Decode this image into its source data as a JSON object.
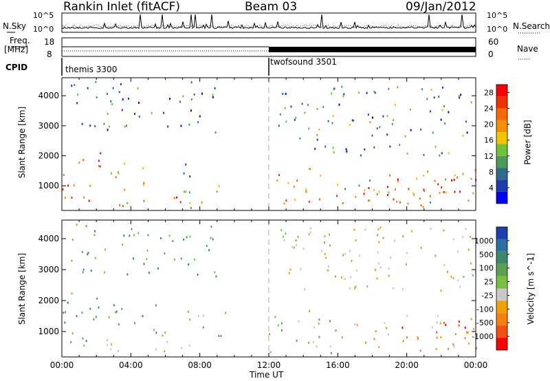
{
  "header": {
    "station": "Rankin Inlet (fitACF)",
    "beam": "Beam 03",
    "date": "09/Jan/2012"
  },
  "top_panel": {
    "left_label": "N.Sky",
    "right_label": "N.Search",
    "left_ticks": [
      "10^5",
      "10^0"
    ],
    "right_ticks": [
      "10^5",
      "10^0"
    ]
  },
  "freq_panel": {
    "left_label_1": "Freq.",
    "left_label_2": "[MHz]",
    "right_label": "Nave",
    "left_ticks": [
      "18",
      "8"
    ],
    "right_ticks": [
      "60",
      "0"
    ]
  },
  "cpid_panel": {
    "label": "CPID",
    "modes": [
      {
        "name": "themis 3300",
        "start_hour": 0
      },
      {
        "name": "twofsound 3501",
        "start_hour": 12
      }
    ]
  },
  "colors": {
    "power_scale": [
      "#0000ff",
      "#1e3ca8",
      "#2e6b8e",
      "#4a9a5a",
      "#70c23a",
      "#f5c400",
      "#f59000",
      "#f56a00",
      "#f03000",
      "#ff0000"
    ],
    "velocity_scale": [
      "#1c3fb0",
      "#2a6fa0",
      "#3a8a6a",
      "#5aa050",
      "#7ac040",
      "#c8c8c8",
      "#f0a000",
      "#f58010",
      "#f05010",
      "#ff0000"
    ]
  },
  "chart_data": [
    {
      "type": "heatmap",
      "title": "",
      "xlabel": "",
      "ylabel": "Slant Range [km]",
      "xlim": [
        "00:00",
        "24:00"
      ],
      "ylim": [
        180,
        4600
      ],
      "y_ticks": [
        "1000",
        "2000",
        "3000",
        "4000"
      ],
      "colorbar": {
        "label": "Power [dB]",
        "ticks": [
          "4",
          "8",
          "12",
          "16",
          "20",
          "24",
          "28"
        ],
        "range": [
          0,
          30
        ]
      },
      "scatter_regions": [
        {
          "t0": 0.0,
          "t1": 2.3,
          "r0": 500,
          "r1": 2200,
          "level": 26
        },
        {
          "t0": 1.2,
          "t1": 5.0,
          "r0": 900,
          "r1": 1800,
          "level": 20
        },
        {
          "t0": 4.0,
          "t1": 8.0,
          "r0": 400,
          "r1": 700,
          "level": 22
        },
        {
          "t0": 2.0,
          "t1": 9.0,
          "r0": 250,
          "r1": 500,
          "level": 18
        },
        {
          "t0": 7.0,
          "t1": 9.5,
          "r0": 800,
          "r1": 1800,
          "level": 10
        },
        {
          "t0": 12.0,
          "t1": 24.0,
          "r0": 300,
          "r1": 1600,
          "level": 18
        },
        {
          "t0": 17.0,
          "t1": 24.0,
          "r0": 500,
          "r1": 1400,
          "level": 26
        },
        {
          "t0": 0.5,
          "t1": 9.0,
          "r0": 2800,
          "r1": 4500,
          "level": 8
        },
        {
          "t0": 12.5,
          "t1": 24.0,
          "r0": 2000,
          "r1": 4400,
          "level": 9
        }
      ]
    },
    {
      "type": "heatmap",
      "title": "",
      "xlabel": "Time UT",
      "ylabel": "Slant Range [km]",
      "xlim": [
        "00:00",
        "24:00"
      ],
      "ylim": [
        180,
        4600
      ],
      "y_ticks": [
        "1000",
        "2000",
        "3000",
        "4000"
      ],
      "x_ticks": [
        "00:00",
        "04:00",
        "08:00",
        "12:00",
        "16:00",
        "20:00",
        "00:00"
      ],
      "colorbar": {
        "label": "Velocity [m s^-1]",
        "ticks": [
          "1000",
          "500",
          "100",
          "25",
          "-25",
          "-100",
          "-500",
          "-1000"
        ],
        "range": [
          -1000,
          1000
        ]
      },
      "scatter_regions": [
        {
          "t0": 0.0,
          "t1": 2.0,
          "r0": 500,
          "r1": 2300,
          "level": 300
        },
        {
          "t0": 1.0,
          "t1": 6.0,
          "r0": 900,
          "r1": 2000,
          "level": 300
        },
        {
          "t0": 2.0,
          "t1": 8.5,
          "r0": 350,
          "r1": 800,
          "level": 0
        },
        {
          "t0": 7.0,
          "t1": 9.5,
          "r0": 800,
          "r1": 1800,
          "level": 200
        },
        {
          "t0": 12.0,
          "t1": 16.5,
          "r0": 300,
          "r1": 1700,
          "level": 100
        },
        {
          "t0": 16.5,
          "t1": 24.0,
          "r0": 400,
          "r1": 1600,
          "level": -300
        },
        {
          "t0": 19.0,
          "t1": 24.0,
          "r0": 700,
          "r1": 1400,
          "level": -700
        },
        {
          "t0": 0.5,
          "t1": 9.0,
          "r0": 2800,
          "r1": 4500,
          "level": 300
        },
        {
          "t0": 12.5,
          "t1": 24.0,
          "r0": 2200,
          "r1": 4400,
          "level": -150
        }
      ]
    }
  ]
}
